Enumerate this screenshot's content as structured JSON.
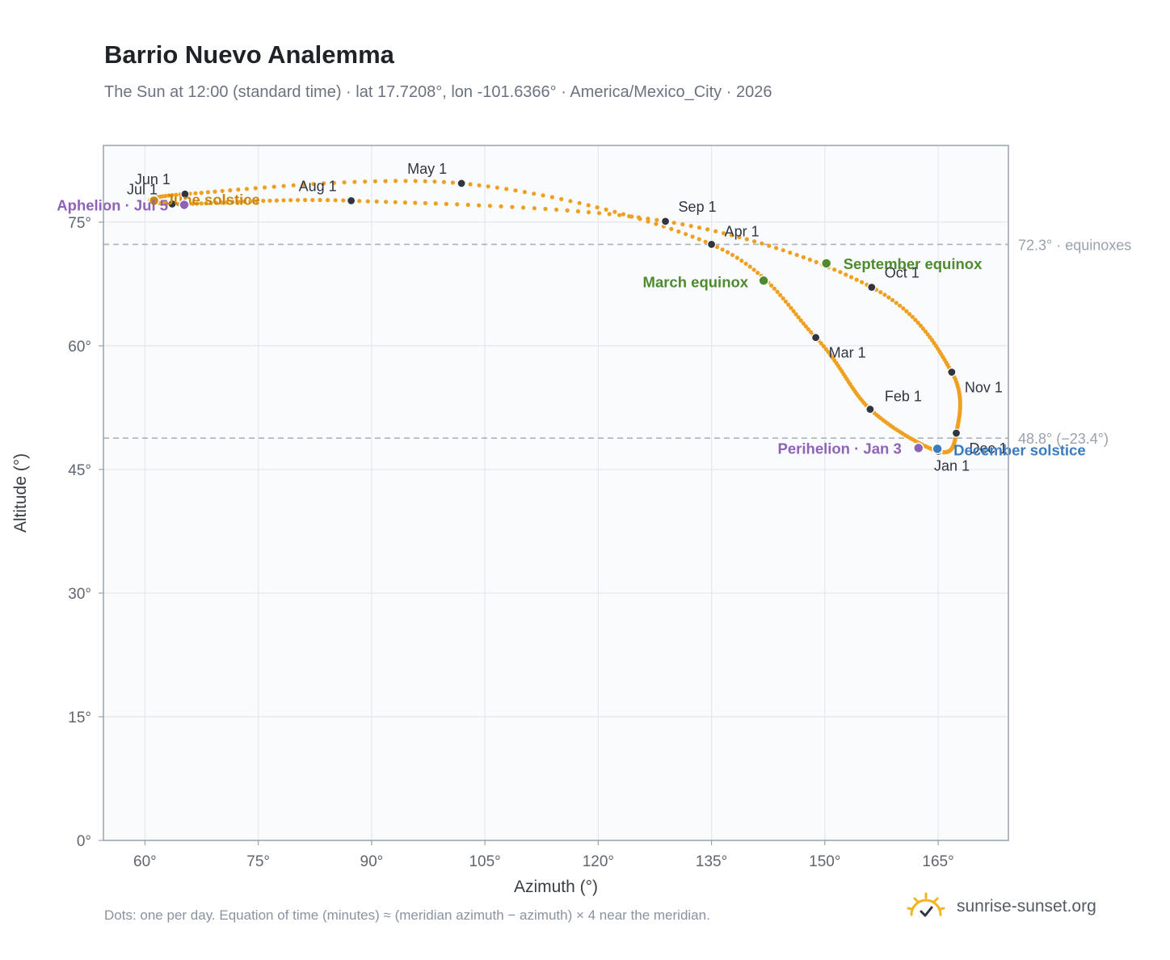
{
  "header": {
    "title": "Barrio Nuevo Analemma",
    "subtitle": "The Sun at 12:00 (standard time) · lat 17.7208°, lon -101.6366° · America/Mexico_City · 2026"
  },
  "footer": {
    "note": "Dots: one per day. Equation of time (minutes) ≈ (meridian azimuth − azimuth) × 4 near the meridian.",
    "brand": "sunrise-sunset.org"
  },
  "colors": {
    "curve": "#f0a020",
    "month_dot": "#2f3640",
    "equinox": "#4e8a2e",
    "december_solstice": "#3b7bbf",
    "june_solstice": "#c8870e",
    "apsis": "#8e63b5",
    "reference_line": "#aab4be",
    "plot_background": "#f9fbfd",
    "grid": "#e3e8ee"
  },
  "chart_data": {
    "type": "scatter",
    "xlabel": "Azimuth (°)",
    "ylabel": "Altitude (°)",
    "xlim": [
      54.5,
      174.3
    ],
    "ylim": [
      0,
      84.3
    ],
    "x_ticks": [
      60,
      75,
      90,
      105,
      120,
      135,
      150,
      165
    ],
    "x_tick_labels": [
      "60°",
      "75°",
      "90°",
      "105°",
      "120°",
      "135°",
      "150°",
      "165°"
    ],
    "y_ticks": [
      0,
      15,
      30,
      45,
      60,
      75
    ],
    "y_tick_labels": [
      "0°",
      "15°",
      "30°",
      "45°",
      "60°",
      "75°"
    ],
    "grid": true,
    "reference_lines": [
      {
        "altitude": 72.3,
        "label": "72.3° · equinoxes"
      },
      {
        "altitude": 48.8,
        "label": "48.8° (−23.4°)"
      }
    ],
    "month_markers": [
      {
        "label": "Jan 1",
        "azimuth": 165.0,
        "altitude": 47.2
      },
      {
        "label": "Feb 1",
        "azimuth": 156.0,
        "altitude": 52.3
      },
      {
        "label": "Mar 1",
        "azimuth": 148.8,
        "altitude": 61.0
      },
      {
        "label": "Apr 1",
        "azimuth": 135.0,
        "altitude": 72.3
      },
      {
        "label": "May 1",
        "azimuth": 101.9,
        "altitude": 79.7
      },
      {
        "label": "Jun 1",
        "azimuth": 65.3,
        "altitude": 78.4
      },
      {
        "label": "Jul 1",
        "azimuth": 63.6,
        "altitude": 77.2
      },
      {
        "label": "Aug 1",
        "azimuth": 87.3,
        "altitude": 77.6
      },
      {
        "label": "Sep 1",
        "azimuth": 128.9,
        "altitude": 75.1
      },
      {
        "label": "Oct 1",
        "azimuth": 156.2,
        "altitude": 67.1
      },
      {
        "label": "Nov 1",
        "azimuth": 166.8,
        "altitude": 56.8
      },
      {
        "label": "Dec 1",
        "azimuth": 167.4,
        "altitude": 49.4
      }
    ],
    "special_points": [
      {
        "label": "March equinox",
        "azimuth": 141.9,
        "altitude": 67.9,
        "kind": "equinox"
      },
      {
        "label": "September equinox",
        "azimuth": 150.2,
        "altitude": 70.0,
        "kind": "equinox"
      },
      {
        "label": "December solstice",
        "azimuth": 164.9,
        "altitude": 47.5,
        "kind": "december_solstice"
      },
      {
        "label": "June solstice",
        "azimuth": 61.2,
        "altitude": 77.6,
        "kind": "june_solstice"
      },
      {
        "label": "Perihelion · Jan 3",
        "azimuth": 162.4,
        "altitude": 47.6,
        "kind": "apsis"
      },
      {
        "label": "Aphelion · Jul 5",
        "azimuth": 65.2,
        "altitude": 77.1,
        "kind": "apsis"
      }
    ]
  }
}
